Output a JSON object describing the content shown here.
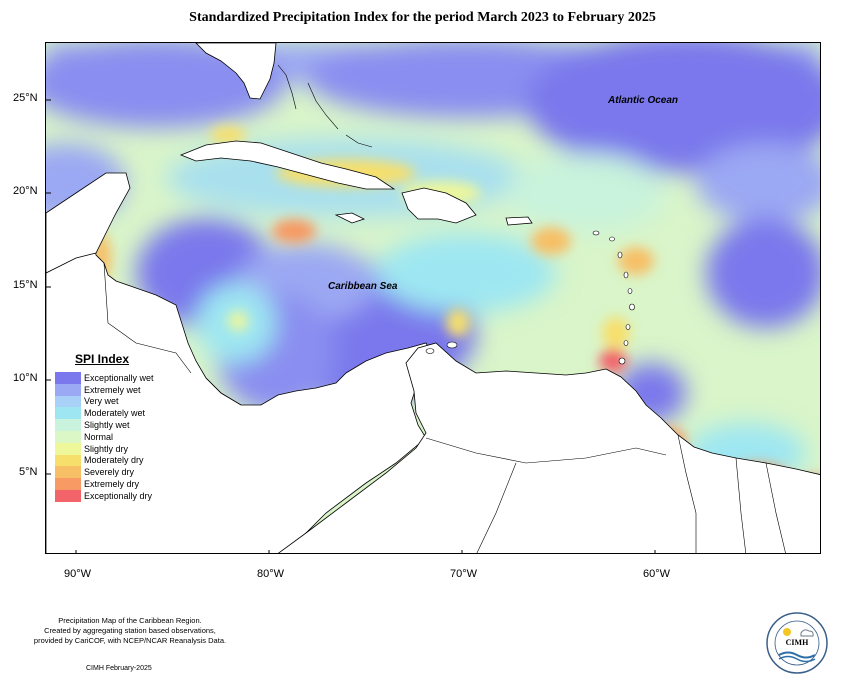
{
  "title": "Standardized Precipitation Index for the period March 2023 to February 2025",
  "map": {
    "lat_ticks": [
      "25°N",
      "20°N",
      "15°N",
      "10°N",
      "5°N"
    ],
    "lon_ticks": [
      "90°W",
      "80°W",
      "70°W",
      "60°W"
    ],
    "labels": {
      "atlantic": "Atlantic Ocean",
      "caribbean": "Caribbean Sea"
    }
  },
  "legend": {
    "title": "SPI Index",
    "items": [
      {
        "label": "Exceptionally wet",
        "color": "#7a78ec"
      },
      {
        "label": "Extremely wet",
        "color": "#9ba8f3"
      },
      {
        "label": "Very wet",
        "color": "#a9d0f7"
      },
      {
        "label": "Moderately wet",
        "color": "#9ee7f2"
      },
      {
        "label": "Slightly wet",
        "color": "#c9f3dc"
      },
      {
        "label": "Normal",
        "color": "#dcf7c6"
      },
      {
        "label": "Slightly dry",
        "color": "#eef79a"
      },
      {
        "label": "Moderately dry",
        "color": "#f7df6c"
      },
      {
        "label": "Severely dry",
        "color": "#f7bf66"
      },
      {
        "label": "Extremely dry",
        "color": "#f79a64"
      },
      {
        "label": "Exceptionally dry",
        "color": "#f2636a"
      }
    ]
  },
  "credit": {
    "line1": "Precipitation Map of the Caribbean Region.",
    "line2": "Created by aggregating station based observations,",
    "line3": "provided by CariCOF, with NCEP/NCAR Reanalysis Data.",
    "date": "CIMH February-2025"
  },
  "logo": {
    "text": "CIMH"
  }
}
